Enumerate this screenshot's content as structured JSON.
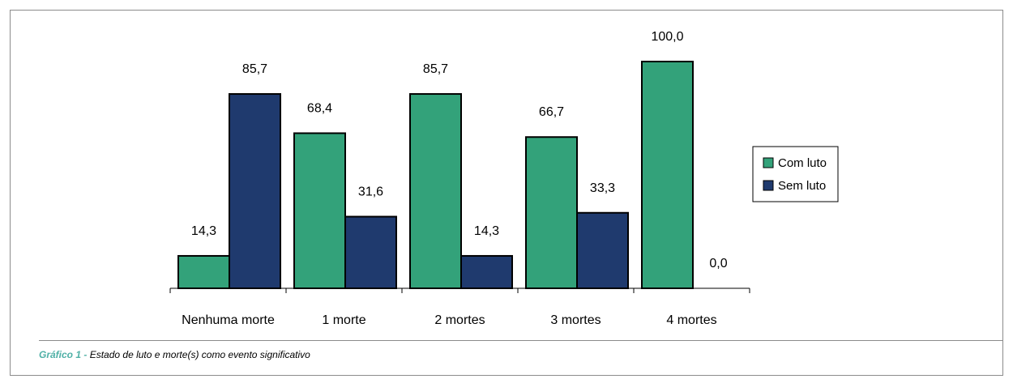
{
  "chart_data": {
    "type": "bar",
    "categories": [
      "Nenhuma morte",
      "1 morte",
      "2 mortes",
      "3 mortes",
      "4 mortes"
    ],
    "series": [
      {
        "name": "Com luto",
        "values": [
          14.3,
          68.4,
          85.7,
          66.7,
          100.0
        ],
        "labels": [
          "14,3",
          "68,4",
          "85,7",
          "66,7",
          "100,0"
        ],
        "color": "#33a27a"
      },
      {
        "name": "Sem luto",
        "values": [
          85.7,
          31.6,
          14.3,
          33.3,
          0.0
        ],
        "labels": [
          "85,7",
          "31,6",
          "14,3",
          "33,3",
          "0,0"
        ],
        "color": "#1f3a6e"
      }
    ],
    "ylim": [
      0,
      100
    ],
    "legend": "right",
    "grid": false
  },
  "caption": {
    "label": "Gráfico 1 -",
    "text": "Estado de luto e morte(s) como evento significativo"
  }
}
